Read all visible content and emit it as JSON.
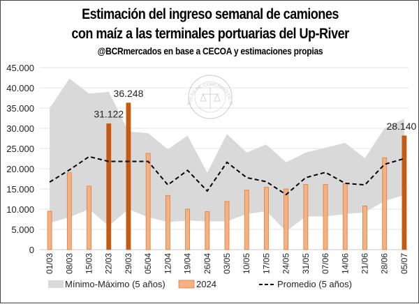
{
  "header": {
    "title_line1": "Estimación del ingreso semanal de camiones",
    "title_line2": "con maíz a las terminales portuarias del Up-River",
    "subtitle": "@BCRmercados en base a CECOA y estimaciones propias"
  },
  "watermark": "BOLSA DE COMERCIO DE ROSARIO",
  "colors": {
    "range": "#d9d9d9",
    "bar_2024": "#f4b183",
    "bar_2024_edge": "#e07b39",
    "bar_highlight": "#c55a11",
    "avg_line": "#000000",
    "grid": "#e3e3e3"
  },
  "chart_data": {
    "type": "bar",
    "title": "Estimación del ingreso semanal de camiones con maíz a las terminales portuarias del Up-River",
    "xlabel": "",
    "ylabel": "",
    "ylim": [
      0,
      45000
    ],
    "yticks": [
      0,
      5000,
      10000,
      15000,
      20000,
      25000,
      30000,
      35000,
      40000,
      45000
    ],
    "ytick_labels": [
      "0",
      "5.000",
      "10.000",
      "15.000",
      "20.000",
      "25.000",
      "30.000",
      "35.000",
      "40.000",
      "45.000"
    ],
    "grid": true,
    "legend": "bottom",
    "categories": [
      "01/03",
      "08/03",
      "15/03",
      "22/03",
      "29/03",
      "05/04",
      "12/04",
      "19/04",
      "26/04",
      "03/05",
      "10/05",
      "17/05",
      "24/05",
      "31/05",
      "07/06",
      "14/06",
      "21/06",
      "28/06",
      "05/07"
    ],
    "series": [
      {
        "name": "Mínimo-Máximo (5 años)",
        "type": "area-range",
        "min": [
          6600,
          8000,
          10000,
          5800,
          10000,
          8000,
          6800,
          7200,
          7000,
          7000,
          8800,
          9500,
          4500,
          8200,
          8200,
          8800,
          9200,
          12000,
          13500
        ],
        "max": [
          35000,
          42300,
          38600,
          39000,
          29200,
          28800,
          24800,
          28200,
          19000,
          28600,
          24000,
          26000,
          21600,
          24000,
          25200,
          26400,
          22600,
          30000,
          32400
        ]
      },
      {
        "name": "2024",
        "type": "bar",
        "values": [
          9500,
          19000,
          15700,
          31122,
          36248,
          23800,
          13400,
          10000,
          9400,
          11900,
          14700,
          15400,
          15000,
          16100,
          16100,
          16300,
          10800,
          22700,
          28140
        ]
      },
      {
        "name": "Promedio (5 años)",
        "type": "line-dashed",
        "values": [
          16700,
          19700,
          23000,
          21800,
          21800,
          21800,
          16000,
          19600,
          14500,
          21600,
          17800,
          16800,
          13600,
          17800,
          19100,
          16400,
          16000,
          21100,
          22500
        ]
      }
    ],
    "highlighted_indices": [
      3,
      4,
      18
    ],
    "data_labels": [
      {
        "index": 3,
        "text": "31.122"
      },
      {
        "index": 4,
        "text": "36.248"
      },
      {
        "index": 18,
        "text": "28.140"
      }
    ]
  }
}
